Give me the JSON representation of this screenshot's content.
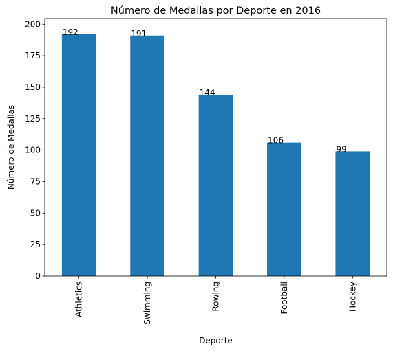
{
  "chart_data": {
    "type": "bar",
    "title": "Número de Medallas por Deporte en 2016",
    "xlabel": "Deporte",
    "ylabel": "Número de Medallas",
    "categories": [
      "Athletics",
      "Swimming",
      "Rowing",
      "Football",
      "Hockey"
    ],
    "values": [
      192,
      191,
      144,
      106,
      99
    ],
    "ylim": [
      0,
      200
    ],
    "yticks": [
      0,
      25,
      50,
      75,
      100,
      125,
      150,
      175,
      200
    ],
    "grid": false,
    "legend": "none",
    "bar_color": "#1f77b4"
  }
}
